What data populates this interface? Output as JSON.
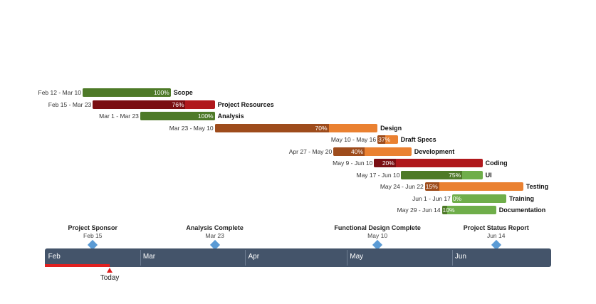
{
  "chart_data": {
    "type": "gantt",
    "today_label": "Today",
    "timeline_months": [
      "Feb",
      "Mar",
      "Apr",
      "May",
      "Jun"
    ],
    "tasks": [
      {
        "name": "Scope",
        "dates": "Feb 12 - Mar 10",
        "start": "02-12",
        "end": "03-10",
        "percent": 100,
        "percent_label": "100%",
        "color": "#6a9a3e",
        "fill_color": "#4e7a28"
      },
      {
        "name": "Project Resources",
        "dates": "Feb 15 - Mar 23",
        "start": "02-15",
        "end": "03-23",
        "percent": 76,
        "percent_label": "76%",
        "color": "#b0181c",
        "fill_color": "#7a0e12"
      },
      {
        "name": "Analysis",
        "dates": "Mar 1 - Mar 23",
        "start": "03-01",
        "end": "03-23",
        "percent": 100,
        "percent_label": "100%",
        "color": "#6a9a3e",
        "fill_color": "#4e7a28"
      },
      {
        "name": "Design",
        "dates": "Mar 23 - May 10",
        "start": "03-23",
        "end": "05-10",
        "percent": 70,
        "percent_label": "70%",
        "color": "#ea8131",
        "fill_color": "#9e4c1c"
      },
      {
        "name": "Draft Specs",
        "dates": "May 10 - May 16",
        "start": "05-10",
        "end": "05-16",
        "percent": 37,
        "percent_label": "37%",
        "color": "#ea8131",
        "fill_color": "#9e4c1c"
      },
      {
        "name": "Development",
        "dates": "Apr 27 - May 20",
        "start": "04-27",
        "end": "05-20",
        "percent": 40,
        "percent_label": "40%",
        "color": "#ea8131",
        "fill_color": "#9e4c1c"
      },
      {
        "name": "Coding",
        "dates": "May 9 - Jun 10",
        "start": "05-09",
        "end": "06-10",
        "percent": 20,
        "percent_label": "20%",
        "color": "#b0181c",
        "fill_color": "#7a0e12"
      },
      {
        "name": "UI",
        "dates": "May 17 - Jun 10",
        "start": "05-17",
        "end": "06-10",
        "percent": 75,
        "percent_label": "75%",
        "color": "#6fae4a",
        "fill_color": "#4e7a28"
      },
      {
        "name": "Testing",
        "dates": "May 24 - Jun 22",
        "start": "05-24",
        "end": "06-22",
        "percent": 15,
        "percent_label": "15%",
        "color": "#ea8131",
        "fill_color": "#9e4c1c"
      },
      {
        "name": "Training",
        "dates": "Jun 1 - Jun 17",
        "start": "06-01",
        "end": "06-17",
        "percent": 0,
        "percent_label": "0%",
        "color": "#6fae4a",
        "fill_color": "#4e7a28"
      },
      {
        "name": "Documentation",
        "dates": "May 29 - Jun 14",
        "start": "05-29",
        "end": "06-14",
        "percent": 10,
        "percent_label": "10%",
        "color": "#6fae4a",
        "fill_color": "#4e7a28"
      }
    ],
    "milestones": [
      {
        "name": "Project Sponsor",
        "date_label": "Feb 15",
        "date": "02-15"
      },
      {
        "name": "Analysis Complete",
        "date_label": "Mar 23",
        "date": "03-23"
      },
      {
        "name": "Functional Design Complete",
        "date_label": "May 10",
        "date": "05-10"
      },
      {
        "name": "Project Status Report",
        "date_label": "Jun 14",
        "date": "06-14"
      }
    ],
    "today_date": "02-20",
    "colors": {
      "timeline": "#44546a",
      "milestone": "#5b9bd5",
      "today": "#e02020"
    }
  }
}
